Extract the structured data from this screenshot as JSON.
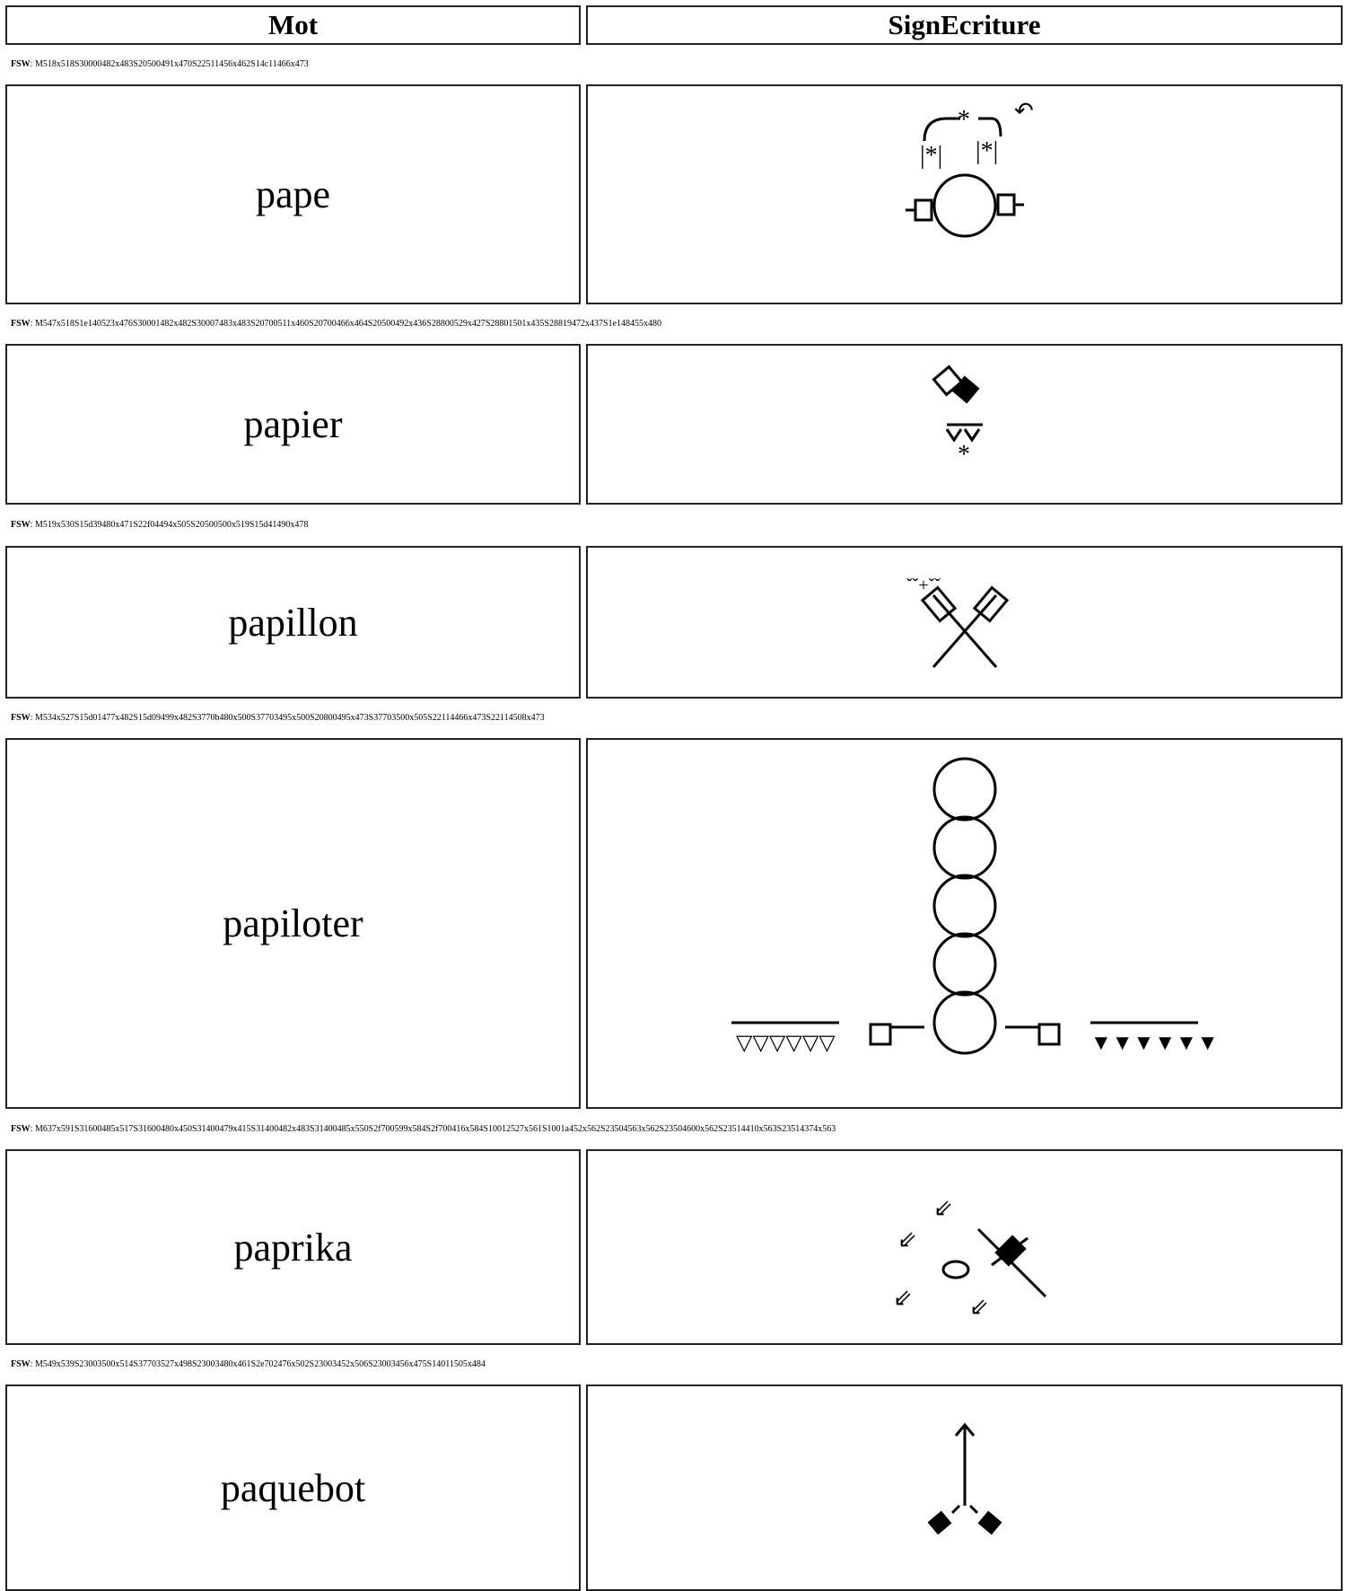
{
  "table": {
    "headers": [
      "Mot",
      "SignEcriture"
    ],
    "rows": [
      {
        "label": "FSW",
        "code": ": M518x518S30000482x483S20500491x470S22511456x462S14c11466x473",
        "word": "pape"
      },
      {
        "label": "FSW",
        "code": ": M547x518S1e140523x476S30001482x482S30007483x483S20700511x460S20700466x464S20500492x436S28800529x427S28801501x435S28819472x437S1e148455x480",
        "word": "papier"
      },
      {
        "label": "FSW",
        "code": ": M519x530S15d39480x471S22f04494x505S20500500x519S15d41490x478",
        "word": "papillon"
      },
      {
        "label": "FSW",
        "code": ": M534x527S15d01477x482S15d09499x482S3770b480x500S37703495x500S20800495x473S37703500x505S22114466x473S22114508x473",
        "word": "papiloter"
      },
      {
        "label": "FSW",
        "code": ": M637x591S31600485x517S31600480x450S31400479x415S31400482x483S31400485x550S2f700599x584S2f700416x584S10012527x561S1001a452x562S23504563x562S23504600x562S23514410x563S23514374x563",
        "word": "paprika"
      },
      {
        "label": "FSW",
        "code": ": M549x539S23003500x514S37703527x498S23003480x461S2e702476x502S23003452x506S23003456x475S14011505x484",
        "word": "paquebot"
      }
    ]
  }
}
